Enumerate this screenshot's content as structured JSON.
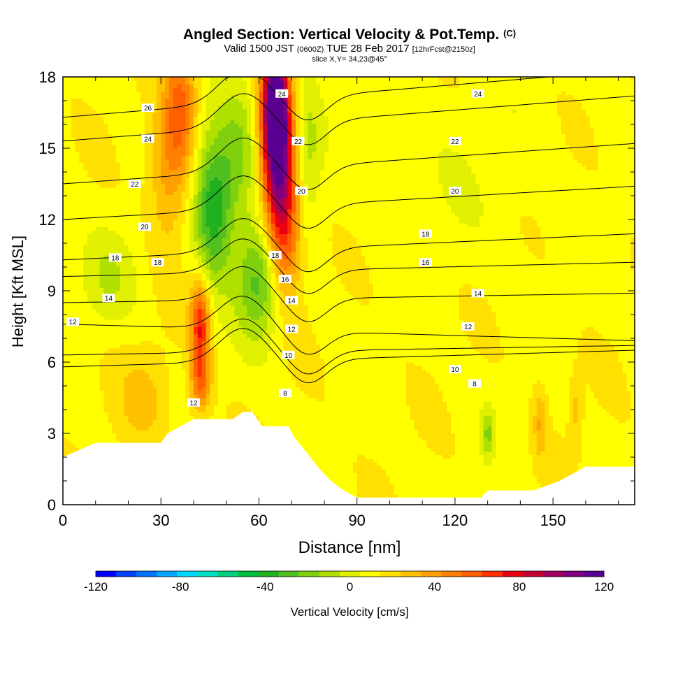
{
  "title": {
    "main": "Angled Section: Vertical Velocity & Pot.Temp.",
    "main_unit": "(C)",
    "sub_valid": "Valid 1500 JST",
    "sub_utc": "(0600Z)",
    "sub_date": "TUE 28 Feb 2017",
    "sub_fcst": "[12hrFcst@2150z]",
    "slice": "slice X,Y= 34,23@45°"
  },
  "chart_data": {
    "type": "heatmap",
    "xlabel": "Distance [nm]",
    "ylabel": "Height [Kft MSL]",
    "xlim": [
      0,
      175
    ],
    "ylim": [
      0,
      18
    ],
    "x_ticks": [
      0,
      30,
      60,
      90,
      120,
      150
    ],
    "y_ticks": [
      0,
      3,
      6,
      9,
      12,
      15,
      18
    ],
    "colorbar": {
      "label": "Vertical Velocity [cm/s]",
      "range": [
        -120,
        120
      ],
      "tick_labels": [
        "-120",
        "-80",
        "-40",
        "0",
        "40",
        "80",
        "120"
      ],
      "colors": [
        "#0000ff",
        "#0040ff",
        "#0073ff",
        "#00a6ff",
        "#00d9ff",
        "#00e0c0",
        "#00d080",
        "#00bf40",
        "#20b020",
        "#50c020",
        "#80d010",
        "#b0e000",
        "#e0f000",
        "#ffff00",
        "#ffe000",
        "#ffc000",
        "#ff9f00",
        "#ff7f00",
        "#ff5f00",
        "#ff3000",
        "#e80010",
        "#c80030",
        "#a00060",
        "#800080",
        "#5a0090"
      ]
    },
    "terrain_kft": [
      [
        0,
        2.0
      ],
      [
        10,
        2.6
      ],
      [
        30,
        2.6
      ],
      [
        32,
        3.0
      ],
      [
        36,
        3.3
      ],
      [
        40,
        3.6
      ],
      [
        52,
        3.6
      ],
      [
        55,
        3.9
      ],
      [
        58,
        3.9
      ],
      [
        61,
        3.3
      ],
      [
        69,
        3.3
      ],
      [
        71,
        2.8
      ],
      [
        74,
        2.3
      ],
      [
        78,
        1.6
      ],
      [
        82,
        1.0
      ],
      [
        86,
        0.6
      ],
      [
        90,
        0.3
      ],
      [
        128,
        0.3
      ],
      [
        130,
        0.6
      ],
      [
        144,
        0.6
      ],
      [
        152,
        1.0
      ],
      [
        160,
        1.6
      ],
      [
        175,
        1.6
      ]
    ],
    "velocity_features": [
      {
        "x": 65,
        "h": 17,
        "dx": 4,
        "dh": 2.5,
        "v": 115
      },
      {
        "x": 66,
        "h": 14,
        "dx": 5,
        "dh": 3,
        "v": 80
      },
      {
        "x": 68,
        "h": 11,
        "dx": 5,
        "dh": 2.5,
        "v": 40
      },
      {
        "x": 36,
        "h": 17,
        "dx": 5,
        "dh": 3,
        "v": 40
      },
      {
        "x": 32,
        "h": 14,
        "dx": 6,
        "dh": 3,
        "v": 25
      },
      {
        "x": 42,
        "h": 7.5,
        "dx": 3,
        "dh": 2,
        "v": 60
      },
      {
        "x": 42,
        "h": 5,
        "dx": 3,
        "dh": 1.2,
        "v": 35
      },
      {
        "x": 46,
        "h": 12.5,
        "dx": 6,
        "dh": 3,
        "v": -55
      },
      {
        "x": 60,
        "h": 9.5,
        "dx": 7,
        "dh": 2.5,
        "v": -40
      },
      {
        "x": 54,
        "h": 15,
        "dx": 6,
        "dh": 3,
        "v": -25
      },
      {
        "x": 75,
        "h": 15,
        "dx": 4,
        "dh": 3,
        "v": -20
      },
      {
        "x": 14,
        "h": 9.5,
        "dx": 9,
        "dh": 2,
        "v": -15
      },
      {
        "x": 25,
        "h": 4.5,
        "dx": 8,
        "dh": 2,
        "v": 15
      },
      {
        "x": 130,
        "h": 3,
        "dx": 2,
        "dh": 1,
        "v": -25
      },
      {
        "x": 146,
        "h": 3.5,
        "dx": 2,
        "dh": 1.5,
        "v": 20
      },
      {
        "x": 157,
        "h": 4,
        "dx": 2,
        "dh": 1.5,
        "v": 15
      },
      {
        "x": 120,
        "h": 14,
        "dx": 30,
        "dh": 4,
        "v": -5
      }
    ],
    "theta_contours": [
      {
        "value": 8,
        "left": 5.8,
        "right": 6.5
      },
      {
        "value": 10,
        "left": 6.3,
        "right": 6.7
      },
      {
        "value": 12,
        "left": 7.6,
        "right": 6.9
      },
      {
        "value": 14,
        "left": 8.5,
        "right": 8.9
      },
      {
        "value": 16,
        "left": 9.6,
        "right": 10.2
      },
      {
        "value": 18,
        "left": 10.3,
        "right": 11.4
      },
      {
        "value": 20,
        "left": 12.0,
        "right": 13.4
      },
      {
        "value": 22,
        "left": 13.5,
        "right": 15.2
      },
      {
        "value": 24,
        "left": 15.3,
        "right": 17.2
      },
      {
        "value": 26,
        "left": 16.3,
        "right": 18.3
      }
    ],
    "contour_labels": [
      {
        "text": "26",
        "x": 26,
        "h": 16.7
      },
      {
        "text": "24",
        "x": 26,
        "h": 15.4
      },
      {
        "text": "22",
        "x": 22,
        "h": 13.5
      },
      {
        "text": "20",
        "x": 25,
        "h": 11.7
      },
      {
        "text": "18",
        "x": 16,
        "h": 10.4
      },
      {
        "text": "18",
        "x": 29,
        "h": 10.2
      },
      {
        "text": "14",
        "x": 14,
        "h": 8.7
      },
      {
        "text": "12",
        "x": 3,
        "h": 7.7
      },
      {
        "text": "12",
        "x": 40,
        "h": 4.3
      },
      {
        "text": "24",
        "x": 67,
        "h": 17.3
      },
      {
        "text": "22",
        "x": 72,
        "h": 15.3
      },
      {
        "text": "20",
        "x": 73,
        "h": 13.2
      },
      {
        "text": "18",
        "x": 65,
        "h": 10.5
      },
      {
        "text": "16",
        "x": 68,
        "h": 9.5
      },
      {
        "text": "14",
        "x": 70,
        "h": 8.6
      },
      {
        "text": "12",
        "x": 70,
        "h": 7.4
      },
      {
        "text": "10",
        "x": 69,
        "h": 6.3
      },
      {
        "text": "8",
        "x": 68,
        "h": 4.7
      },
      {
        "text": "24",
        "x": 127,
        "h": 17.3
      },
      {
        "text": "22",
        "x": 120,
        "h": 15.3
      },
      {
        "text": "20",
        "x": 120,
        "h": 13.2
      },
      {
        "text": "18",
        "x": 111,
        "h": 11.4
      },
      {
        "text": "16",
        "x": 111,
        "h": 10.2
      },
      {
        "text": "14",
        "x": 127,
        "h": 8.9
      },
      {
        "text": "12",
        "x": 124,
        "h": 7.5
      },
      {
        "text": "10",
        "x": 120,
        "h": 5.7
      },
      {
        "text": "8",
        "x": 126,
        "h": 5.1
      }
    ]
  }
}
